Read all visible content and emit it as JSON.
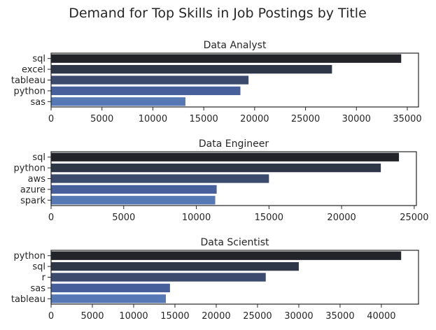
{
  "figure_title": "Demand for Top Skills in Job Postings by Title",
  "palette": [
    "#22242a",
    "#2e3748",
    "#3c4b6d",
    "#47609b",
    "#5678b5"
  ],
  "chart_data": [
    {
      "type": "bar",
      "orientation": "horizontal",
      "title": "Data Analyst",
      "categories": [
        "sql",
        "excel",
        "tableau",
        "python",
        "sas"
      ],
      "values": [
        34400,
        27600,
        19400,
        18600,
        13200
      ],
      "xlim": [
        0,
        36100
      ],
      "xticks": [
        0,
        5000,
        10000,
        15000,
        20000,
        25000,
        30000,
        35000
      ],
      "xlabel": "",
      "ylabel": "",
      "grid": false
    },
    {
      "type": "bar",
      "orientation": "horizontal",
      "title": "Data Engineer",
      "categories": [
        "sql",
        "python",
        "aws",
        "azure",
        "spark"
      ],
      "values": [
        23950,
        22700,
        15000,
        11400,
        11300
      ],
      "xlim": [
        0,
        25150
      ],
      "xticks": [
        0,
        5000,
        10000,
        15000,
        20000,
        25000
      ],
      "xlabel": "",
      "ylabel": "",
      "grid": false
    },
    {
      "type": "bar",
      "orientation": "horizontal",
      "title": "Data Scientist",
      "categories": [
        "python",
        "sql",
        "r",
        "sas",
        "tableau"
      ],
      "values": [
        42400,
        30000,
        26000,
        14400,
        13900
      ],
      "xlim": [
        0,
        44500
      ],
      "xticks": [
        0,
        5000,
        10000,
        15000,
        20000,
        25000,
        30000,
        35000,
        40000
      ],
      "xlabel": "",
      "ylabel": "",
      "grid": false
    }
  ]
}
